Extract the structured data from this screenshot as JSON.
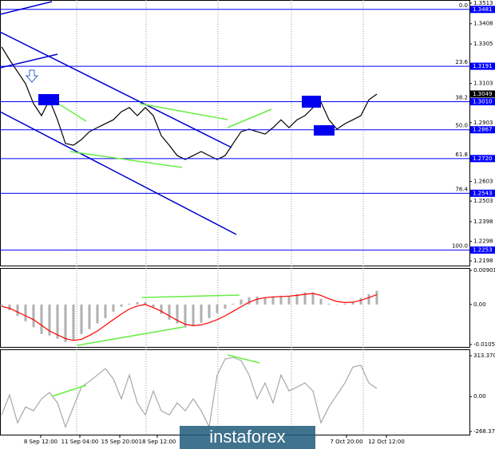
{
  "watermark": "instaforex",
  "chart_data": [
    {
      "type": "line",
      "color": "#000000",
      "x": [
        0,
        1,
        2,
        3,
        4,
        5,
        6,
        7,
        8,
        9,
        10,
        11,
        12,
        13,
        14,
        15,
        16,
        17,
        18,
        19,
        20,
        21,
        22,
        23,
        24,
        25,
        26,
        27,
        28,
        29,
        30,
        31,
        32,
        33,
        34,
        35,
        36,
        37,
        38,
        39,
        40,
        41,
        42,
        43,
        44,
        45,
        46,
        47
      ],
      "values": [
        1.329,
        1.3224,
        1.3163,
        1.3102,
        1.3,
        1.2939,
        1.302,
        1.2918,
        1.2797,
        1.2788,
        1.2817,
        1.2857,
        1.2878,
        1.2898,
        1.2918,
        1.2959,
        1.298,
        1.2939,
        1.298,
        1.2939,
        1.2837,
        1.2788,
        1.2735,
        1.2715,
        1.2735,
        1.2756,
        1.2735,
        1.2715,
        1.2735,
        1.2797,
        1.2857,
        1.287,
        1.2857,
        1.2845,
        1.2878,
        1.2918,
        1.2878,
        1.2918,
        1.2939,
        1.298,
        1.3008,
        1.2918,
        1.287,
        1.2898,
        1.2918,
        1.2939,
        1.302,
        1.3049
      ],
      "xlim": [
        -0.2,
        58.6
      ],
      "xticks": [
        {
          "value": 4.9,
          "label": "8 Sep 12:00"
        },
        {
          "value": 9.8,
          "label": "11 Sep 04:00"
        },
        {
          "value": 14.8,
          "label": "15 Sep 20:00"
        },
        {
          "value": 19.5,
          "label": "18 Sep 12:00"
        },
        {
          "value": 43.2,
          "label": "7 Oct 20:00"
        },
        {
          "value": 48.2,
          "label": "12 Oct 12:00"
        }
      ],
      "ylim": [
        1.2174,
        1.3529
      ],
      "yticks": [
        1.3513,
        1.3408,
        1.3305,
        1.3103,
        1.2903,
        1.2603,
        1.2503,
        1.2398,
        1.2298,
        1.2198
      ],
      "levels": [
        1.3481,
        1.3191,
        1.301,
        1.2867,
        1.272,
        1.2543,
        1.2253
      ],
      "level_labels": [
        "1.3481",
        "1.3191",
        "1.3010",
        "1.2867",
        "1.2720",
        "1.2543",
        "1.2253"
      ],
      "fib_labels": [
        "0.0",
        "23.6",
        "38.2",
        "50.0",
        "61.8",
        "76.4",
        "100.0"
      ],
      "level_color": "#0000ff",
      "last_price": 1.3049
    },
    {
      "type": "bar",
      "color": "#b0b0b0",
      "signal_color": "#ff0000",
      "values": [
        -0.0004,
        -0.0015,
        -0.003,
        -0.0044,
        -0.006,
        -0.0078,
        -0.0082,
        -0.009,
        -0.0099,
        -0.0093,
        -0.0078,
        -0.0065,
        -0.005,
        -0.0036,
        -0.0019,
        -0.0006,
        0.0002,
        0.0006,
        0.0006,
        -0.0006,
        -0.0025,
        -0.004,
        -0.005,
        -0.0061,
        -0.0057,
        -0.0048,
        -0.0036,
        -0.0023,
        -0.0011,
        0.0002,
        0.0013,
        0.0019,
        0.0021,
        0.0019,
        0.0021,
        0.0023,
        0.0023,
        0.0027,
        0.0032,
        0.0032,
        0.0015,
        0.0002,
        0.0,
        0.0002,
        0.0006,
        0.0017,
        0.0027,
        0.0036
      ],
      "signal": [
        -0.0005,
        -0.001,
        -0.002,
        -0.003,
        -0.004,
        -0.0055,
        -0.007,
        -0.008,
        -0.009,
        -0.0095,
        -0.0092,
        -0.0082,
        -0.007,
        -0.0055,
        -0.004,
        -0.0025,
        -0.0012,
        -0.0004,
        0.0,
        -0.0008,
        -0.0018,
        -0.003,
        -0.0042,
        -0.0052,
        -0.0056,
        -0.0054,
        -0.0048,
        -0.004,
        -0.003,
        -0.0018,
        -0.0006,
        0.0006,
        0.0014,
        0.0018,
        0.002,
        0.0021,
        0.0022,
        0.0024,
        0.0027,
        0.0029,
        0.0024,
        0.0015,
        0.0008,
        0.0005,
        0.0006,
        0.0011,
        0.0018,
        0.0026
      ],
      "ylim": [
        -0.0112,
        0.00964
      ],
      "yticks": [
        0.00901,
        {
          "value": 0,
          "label": "0.00"
        },
        -0.01057
      ]
    },
    {
      "type": "line",
      "color": "#a8a8a8",
      "values": [
        -141,
        12,
        -202,
        -80,
        -110,
        -18,
        31,
        -49,
        -233,
        -80,
        73,
        116,
        165,
        214,
        135,
        -18,
        165,
        -49,
        -141,
        43,
        -110,
        -141,
        -49,
        -110,
        -18,
        -110,
        -233,
        165,
        288,
        300,
        276,
        165,
        -18,
        104,
        -49,
        165,
        43,
        73,
        104,
        43,
        -202,
        -80,
        12,
        104,
        227,
        239,
        104,
        61
      ],
      "ylim": [
        -292.9,
        362.4
      ],
      "yticks": [
        313.3704,
        {
          "value": 0,
          "label": "0.00"
        },
        -268.378
      ]
    }
  ]
}
